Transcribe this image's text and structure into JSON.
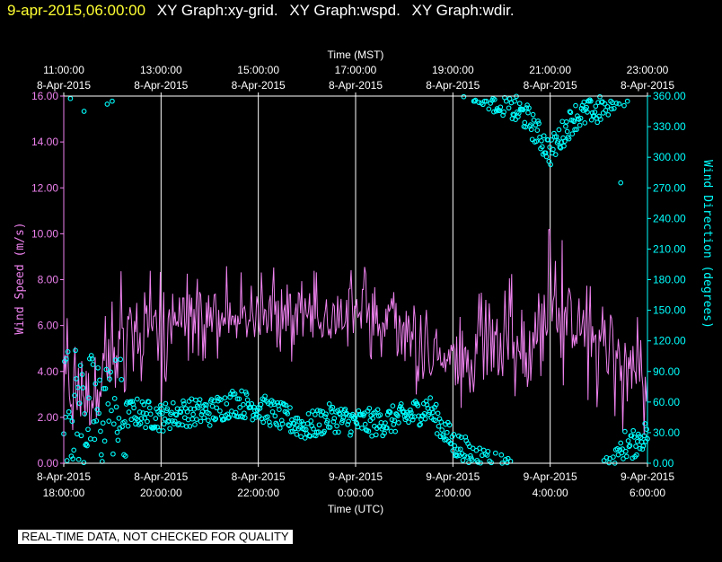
{
  "header": {
    "timestamp": "9-apr-2015,06:00:00",
    "graphs": [
      "XY Graph:xy-grid.",
      "XY Graph:wspd.",
      "XY Graph:wdir."
    ]
  },
  "banner": "REAL-TIME DATA, NOT CHECKED FOR QUALITY",
  "colors": {
    "speed": "#ee82ee",
    "direction": "#00ffff",
    "header_time": "#ffff33",
    "grid": "#ffffff"
  },
  "chart_data": {
    "type": "line",
    "top_axis": {
      "title": "Time (MST)",
      "ticks": [
        {
          "time": "11:00:00",
          "date": "8-Apr-2015"
        },
        {
          "time": "13:00:00",
          "date": "8-Apr-2015"
        },
        {
          "time": "15:00:00",
          "date": "8-Apr-2015"
        },
        {
          "time": "17:00:00",
          "date": "8-Apr-2015"
        },
        {
          "time": "19:00:00",
          "date": "8-Apr-2015"
        },
        {
          "time": "21:00:00",
          "date": "8-Apr-2015"
        },
        {
          "time": "23:00:00",
          "date": "8-Apr-2015"
        }
      ]
    },
    "bottom_axis": {
      "title": "Time (UTC)",
      "ticks": [
        {
          "date": "8-Apr-2015",
          "time": "18:00:00"
        },
        {
          "date": "8-Apr-2015",
          "time": "20:00:00"
        },
        {
          "date": "8-Apr-2015",
          "time": "22:00:00"
        },
        {
          "date": "9-Apr-2015",
          "time": "0:00:00"
        },
        {
          "date": "9-Apr-2015",
          "time": "2:00:00"
        },
        {
          "date": "9-Apr-2015",
          "time": "4:00:00"
        },
        {
          "date": "9-Apr-2015",
          "time": "6:00:00"
        }
      ]
    },
    "x_range_utc": [
      "2015-04-08T18:00",
      "2015-04-09T06:00"
    ],
    "y_left": {
      "title": "Wind Speed (m/s)",
      "ylim": [
        0,
        16
      ],
      "tick_labels": [
        "0.00",
        "2.00",
        "4.00",
        "6.00",
        "8.00",
        "10.00",
        "12.00",
        "14.00",
        "16.00"
      ]
    },
    "y_right": {
      "title": "Wind Direction (degrees)",
      "ylim": [
        0,
        360
      ],
      "tick_labels": [
        "0.00",
        "30.00",
        "60.00",
        "90.00",
        "120.00",
        "150.00",
        "180.00",
        "210.00",
        "240.00",
        "270.00",
        "300.00",
        "330.00",
        "360.00"
      ]
    },
    "grid": "vertical",
    "series": [
      {
        "name": "Wind Speed",
        "axis": "left",
        "style": "line",
        "x_utc": [
          "2015-04-08T18:00",
          "2015-04-08T18:30",
          "2015-04-08T19:00",
          "2015-04-08T19:30",
          "2015-04-08T20:00",
          "2015-04-08T20:30",
          "2015-04-08T21:00",
          "2015-04-08T21:30",
          "2015-04-08T22:00",
          "2015-04-08T22:30",
          "2015-04-08T23:00",
          "2015-04-08T23:30",
          "2015-04-09T00:00",
          "2015-04-09T00:30",
          "2015-04-09T01:00",
          "2015-04-09T01:30",
          "2015-04-09T02:00",
          "2015-04-09T02:30",
          "2015-04-09T03:00",
          "2015-04-09T03:30",
          "2015-04-09T04:00",
          "2015-04-09T04:30",
          "2015-04-09T05:00",
          "2015-04-09T05:30",
          "2015-04-09T06:00"
        ],
        "values": [
          3.5,
          2.8,
          4.5,
          5.8,
          6.2,
          6.4,
          6.6,
          6.0,
          6.4,
          6.8,
          6.5,
          6.3,
          7.2,
          6.4,
          5.6,
          5.0,
          4.4,
          4.6,
          5.3,
          5.1,
          6.6,
          6.2,
          5.4,
          4.6,
          3.3
        ],
        "max_values": [
          6.5,
          8.0,
          8.5,
          8.8,
          8.6,
          8.4,
          9.3,
          8.3,
          8.5,
          9.8,
          8.9,
          8.4,
          8.9,
          9.0,
          7.6,
          7.6,
          6.6,
          7.5,
          9.3,
          8.6,
          11.4,
          8.9,
          7.8,
          7.0,
          6.7
        ],
        "min_values": [
          1.0,
          0.9,
          3.0,
          2.5,
          2.6,
          4.4,
          4.2,
          3.7,
          4.4,
          4.3,
          4.4,
          4.3,
          5.4,
          3.7,
          2.3,
          2.4,
          2.0,
          2.1,
          2.6,
          2.7,
          2.6,
          3.1,
          2.3,
          1.2,
          0.8
        ]
      },
      {
        "name": "Wind Direction",
        "axis": "right",
        "style": "circles",
        "x_utc": [
          "2015-04-08T18:00",
          "2015-04-08T18:30",
          "2015-04-08T19:00",
          "2015-04-08T19:30",
          "2015-04-08T20:00",
          "2015-04-08T20:30",
          "2015-04-08T21:00",
          "2015-04-08T21:30",
          "2015-04-08T22:00",
          "2015-04-08T22:30",
          "2015-04-08T23:00",
          "2015-04-08T23:30",
          "2015-04-09T00:00",
          "2015-04-09T00:30",
          "2015-04-09T01:00",
          "2015-04-09T01:30",
          "2015-04-09T02:00",
          "2015-04-09T02:30",
          "2015-04-09T03:00",
          "2015-04-09T03:30",
          "2015-04-09T04:00",
          "2015-04-09T04:30",
          "2015-04-09T05:00",
          "2015-04-09T05:30",
          "2015-04-09T06:00"
        ],
        "values": [
          60,
          50,
          45,
          50,
          45,
          50,
          50,
          60,
          55,
          45,
          35,
          45,
          40,
          40,
          45,
          55,
          20,
          5,
          355,
          340,
          305,
          340,
          345,
          10,
          30
        ],
        "outliers": [
          {
            "x_utc": "2015-04-08T18:25",
            "value": 345
          },
          {
            "x_utc": "2015-04-09T05:27",
            "value": 275
          }
        ]
      }
    ]
  }
}
